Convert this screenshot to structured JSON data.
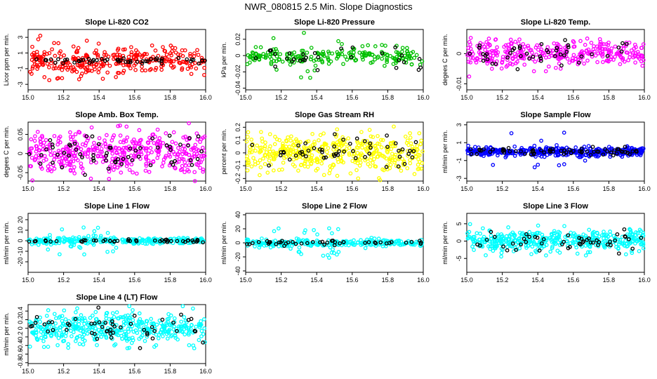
{
  "page_title": "NWR_080815  2.5 Min. Slope Diagnostics",
  "chart_data": [
    {
      "type": "scatter",
      "title": "Slope Li-820 CO2",
      "ylabel": "Licor ppm per min.",
      "xlim": [
        15.0,
        16.0
      ],
      "ylim": [
        -3.7,
        4.0
      ],
      "xticks": [
        "15.0",
        "15.2",
        "15.4",
        "15.6",
        "15.8",
        "16.0"
      ],
      "yticks": [
        -3,
        -1,
        1,
        3
      ],
      "color": "#ff0000",
      "spread": 0.9,
      "outlier_spread": 2.8,
      "black_spread": 0.15,
      "n": 300,
      "n_black": 55,
      "n_out": 14,
      "seed": 11
    },
    {
      "type": "scatter",
      "title": "Slope Li-820 Pressure",
      "ylabel": "kPa per min.",
      "xlim": [
        15.0,
        16.0
      ],
      "ylim": [
        -0.042,
        0.032
      ],
      "xticks": [
        "15.0",
        "15.2",
        "15.4",
        "15.6",
        "15.8",
        "16.0"
      ],
      "yticks": [
        -0.04,
        -0.02,
        0.0,
        0.02
      ],
      "color": "#00c000",
      "spread": 0.005,
      "outlier_spread": 0.028,
      "black_spread": 0.006,
      "n": 220,
      "n_black": 30,
      "n_out": 8,
      "seed": 23
    },
    {
      "type": "scatter",
      "title": "Slope Li-820 Temp.",
      "ylabel": "degees C per min.",
      "xlim": [
        15.0,
        16.0
      ],
      "ylim": [
        -0.012,
        0.008
      ],
      "xticks": [
        "15.0",
        "15.2",
        "15.4",
        "15.6",
        "15.8",
        "16.0"
      ],
      "yticks": [
        -0.01,
        0.0
      ],
      "color": "#ff00ff",
      "spread": 0.0022,
      "outlier_spread": 0.006,
      "black_spread": 0.002,
      "n": 320,
      "n_black": 45,
      "n_out": 12,
      "seed": 31
    },
    {
      "type": "scatter",
      "title": "Slope Amb. Box Temp.",
      "ylabel": "degees C per min.",
      "xlim": [
        15.0,
        16.0
      ],
      "ylim": [
        -0.072,
        0.082
      ],
      "xticks": [
        "15.0",
        "15.2",
        "15.4",
        "15.6",
        "15.8",
        "16.0"
      ],
      "yticks": [
        -0.05,
        0.0,
        0.05
      ],
      "color": "#ff00ff",
      "spread": 0.028,
      "outlier_spread": 0.05,
      "black_spread": 0.028,
      "n": 420,
      "n_black": 60,
      "n_out": 10,
      "seed": 41
    },
    {
      "type": "scatter",
      "title": "Slope Gas Stream RH",
      "ylabel": "percent per min.",
      "xlim": [
        15.0,
        16.0
      ],
      "ylim": [
        -0.22,
        0.24
      ],
      "xticks": [
        "15.0",
        "15.2",
        "15.4",
        "15.6",
        "15.8",
        "16.0"
      ],
      "yticks": [
        -0.2,
        -0.1,
        0.0,
        0.1,
        0.2
      ],
      "color": "#ffff00",
      "spread": 0.075,
      "outlier_spread": 0.16,
      "black_spread": 0.06,
      "n": 420,
      "n_black": 55,
      "n_out": 10,
      "seed": 53
    },
    {
      "type": "scatter",
      "title": "Slope Sample Flow",
      "ylabel": "ml/min per min.",
      "xlim": [
        15.0,
        16.0
      ],
      "ylim": [
        -3.3,
        3.3
      ],
      "xticks": [
        "15.0",
        "15.2",
        "15.4",
        "15.6",
        "15.8",
        "16.0"
      ],
      "yticks": [
        -3,
        -1,
        1,
        3
      ],
      "color": "#0000ff",
      "spread": 0.25,
      "outlier_spread": 2.2,
      "black_spread": 0.2,
      "n": 420,
      "n_black": 70,
      "n_out": 20,
      "seed": 61
    },
    {
      "type": "scatter",
      "title": "Slope Line 1 Flow",
      "ylabel": "ml/min per min.",
      "xlim": [
        15.0,
        16.0
      ],
      "ylim": [
        -30,
        26
      ],
      "xticks": [
        "15.0",
        "15.2",
        "15.4",
        "15.6",
        "15.8",
        "16.0"
      ],
      "yticks": [
        -20,
        -10,
        0,
        10,
        20
      ],
      "color": "#00ffff",
      "spread": 1.5,
      "outlier_spread": 14,
      "black_spread": 0.8,
      "n": 260,
      "n_black": 45,
      "n_out": 28,
      "seed": 71
    },
    {
      "type": "scatter",
      "title": "Slope Line 2 Flow",
      "ylabel": "ml/min per min.",
      "xlim": [
        15.0,
        16.0
      ],
      "ylim": [
        -42,
        42
      ],
      "xticks": [
        "15.0",
        "15.2",
        "15.4",
        "15.6",
        "15.8",
        "16.0"
      ],
      "yticks": [
        -40,
        -20,
        0,
        20,
        40
      ],
      "color": "#00ffff",
      "spread": 2.5,
      "outlier_spread": 22,
      "black_spread": 2.0,
      "n": 240,
      "n_black": 45,
      "n_out": 26,
      "seed": 83
    },
    {
      "type": "scatter",
      "title": "Slope Line 3 Flow",
      "ylabel": "ml/min per min.",
      "xlim": [
        15.0,
        16.0
      ],
      "ylim": [
        -9,
        8
      ],
      "xticks": [
        "15.0",
        "15.2",
        "15.4",
        "15.6",
        "15.8",
        "16.0"
      ],
      "yticks": [
        -5,
        0,
        5
      ],
      "color": "#00ffff",
      "spread": 1.6,
      "outlier_spread": 4.5,
      "black_spread": 1.4,
      "n": 400,
      "n_black": 50,
      "n_out": 16,
      "seed": 97
    },
    {
      "type": "scatter",
      "title": "Slope Line 4 (LT) Flow",
      "ylabel": "ml/min per min.",
      "xlim": [
        15.0,
        16.0
      ],
      "ylim": [
        -0.82,
        0.55
      ],
      "xticks": [
        "15.0",
        "15.2",
        "15.4",
        "15.6",
        "15.8",
        "16.0"
      ],
      "yticks": [
        -0.8,
        -0.6,
        -0.4,
        -0.2,
        0.0,
        0.2,
        0.4
      ],
      "color": "#00ffff",
      "spread": 0.18,
      "outlier_spread": 0.4,
      "black_spread": 0.15,
      "n": 420,
      "n_black": 50,
      "n_out": 14,
      "seed": 101
    }
  ]
}
